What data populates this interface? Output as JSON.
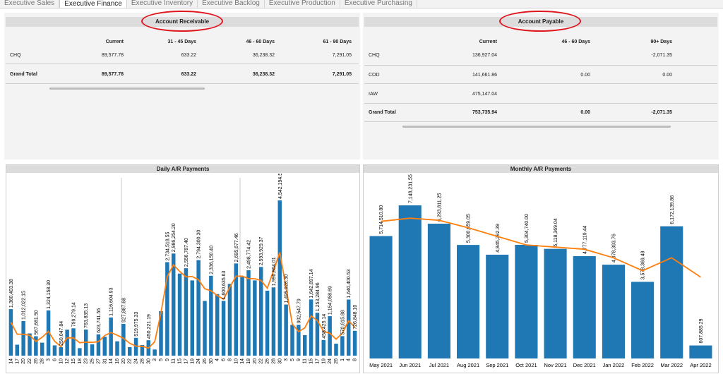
{
  "tabs": [
    {
      "label": "Executive Sales",
      "active": false
    },
    {
      "label": "Executive Finance",
      "active": true
    },
    {
      "label": "Executive Inventory",
      "active": false
    },
    {
      "label": "Executive Backlog",
      "active": false
    },
    {
      "label": "Executive Production",
      "active": false
    },
    {
      "label": "Executive Purchasing",
      "active": false
    }
  ],
  "receivable": {
    "title": "Account Receivable",
    "columns": [
      "Current",
      "31 - 45 Days",
      "46 - 60 Days",
      "61 - 90 Days"
    ],
    "rows": [
      {
        "label": "CHQ",
        "values": [
          "89,577.78",
          "633.22",
          "36,238.32",
          "7,291.05"
        ]
      },
      {
        "label": "Grand Total",
        "values": [
          "89,577.78",
          "633.22",
          "36,238.32",
          "7,291.05"
        ]
      }
    ]
  },
  "payable": {
    "title": "Account Payable",
    "columns": [
      "Current",
      "46 - 60 Days",
      "90+ Days"
    ],
    "rows": [
      {
        "label": "CHQ",
        "values": [
          "136,927.04",
          "",
          "-2,071.35"
        ]
      },
      {
        "label": "COD",
        "values": [
          "141,661.86",
          "0.00",
          "0.00"
        ]
      },
      {
        "label": "IAW",
        "values": [
          "475,147.04",
          "",
          ""
        ]
      },
      {
        "label": "Grand Total",
        "values": [
          "753,735.94",
          "0.00",
          "-2,071.35"
        ]
      }
    ]
  },
  "colors": {
    "bar": "#1f77b4",
    "trend": "#ff7f0e",
    "highlight": "#e0161e"
  },
  "chart_data": [
    {
      "type": "bar",
      "title": "Daily A/R Payments",
      "trend_line": true,
      "x": [
        "14",
        "17",
        "20",
        "22",
        "26",
        "28",
        "3",
        "6",
        "10",
        "12",
        "15",
        "18",
        "23",
        "25",
        "27",
        "31",
        "14",
        "16",
        "20",
        "22",
        "24",
        "28",
        "30",
        "3",
        "5",
        "9",
        "11",
        "15",
        "17",
        "19",
        "24",
        "26",
        "30",
        "4",
        "6",
        "8",
        "10",
        "14",
        "18",
        "20",
        "22",
        "26",
        "28",
        "30",
        "3",
        "5",
        "9",
        "11",
        "15",
        "17",
        "19",
        "24",
        "26",
        "1",
        "4",
        "8"
      ],
      "values": [
        1360403.38,
        320000,
        1012022.15,
        650000,
        567681.5,
        380000,
        1324158.3,
        300000,
        250047.84,
        760000,
        799279.14,
        220000,
        763835.13,
        330000,
        623741.55,
        550000,
        1116604.93,
        420000,
        927887.68,
        250000,
        519975.33,
        310000,
        450221.19,
        180000,
        1300000,
        2734518.55,
        2986254.2,
        2400000,
        2556787.4,
        2200000,
        2794300.3,
        1600000,
        2336150.4,
        1800000,
        1600635.63,
        2100000,
        2695677.46,
        2300000,
        2498774.42,
        2200000,
        2593929.37,
        1900000,
        1996864.01,
        4542194.52,
        1495928.3,
        900000,
        902547.79,
        600000,
        1642897.14,
        1253284.96,
        458425.14,
        1154058.69,
        350000,
        570615.88,
        1640400.53,
        726848.1
      ],
      "annotated": [
        {
          "i": 0,
          "label": "1,360,403.38"
        },
        {
          "i": 2,
          "label": "1,012,022.15"
        },
        {
          "i": 4,
          "label": "567,681.50"
        },
        {
          "i": 6,
          "label": "1,324,158.30"
        },
        {
          "i": 8,
          "label": "250,047.84"
        },
        {
          "i": 10,
          "label": "799,279.14"
        },
        {
          "i": 12,
          "label": "763,835.13"
        },
        {
          "i": 14,
          "label": "623,741.55"
        },
        {
          "i": 16,
          "label": "1,116,604.93"
        },
        {
          "i": 18,
          "label": "927,887.68"
        },
        {
          "i": 20,
          "label": "519,975.33"
        },
        {
          "i": 22,
          "label": "450,221.19"
        },
        {
          "i": 25,
          "label": "2,734,518.55"
        },
        {
          "i": 26,
          "label": "2,986,254.20"
        },
        {
          "i": 28,
          "label": "2,556,787.40"
        },
        {
          "i": 30,
          "label": "2,794,300.30"
        },
        {
          "i": 32,
          "label": "2,336,150.40"
        },
        {
          "i": 34,
          "label": "1,600,635.63"
        },
        {
          "i": 36,
          "label": "2,695,677.46"
        },
        {
          "i": 38,
          "label": "2,498,774.42"
        },
        {
          "i": 40,
          "label": "2,593,929.37"
        },
        {
          "i": 42,
          "label": "1,996,864.01"
        },
        {
          "i": 43,
          "label": "4,542,194.52"
        },
        {
          "i": 44,
          "label": "1,495,928.30"
        },
        {
          "i": 46,
          "label": "902,547.79"
        },
        {
          "i": 48,
          "label": "1,642,897.14"
        },
        {
          "i": 49,
          "label": "1,253,284.96"
        },
        {
          "i": 50,
          "label": "458,425.14"
        },
        {
          "i": 51,
          "label": "1,154,058.69"
        },
        {
          "i": 53,
          "label": "570,615.88"
        },
        {
          "i": 54,
          "label": "1,640,400.53"
        },
        {
          "i": 55,
          "label": "726,848.10"
        }
      ],
      "ylim": [
        0,
        5200000
      ]
    },
    {
      "type": "bar",
      "title": "Monthly A/R Payments",
      "trend_line": true,
      "categories": [
        "May 2021",
        "Jun 2021",
        "Jul 2021",
        "Aug 2021",
        "Sep 2021",
        "Oct 2021",
        "Nov 2021",
        "Dec 2021",
        "Jan 2022",
        "Feb 2022",
        "Mar 2022",
        "Apr 2022"
      ],
      "values": [
        5714510.8,
        7148231.55,
        6293811.25,
        5300659.05,
        4845292.39,
        5304740.0,
        5118369.04,
        4777119.44,
        4378393.76,
        3578369.48,
        6172139.86,
        607885.29
      ],
      "labels": [
        "5,714,510.80",
        "7,148,231.55",
        "6,293,811.25",
        "5,300,659.05",
        "4,845,292.39",
        "5,304,740.00",
        "5,118,369.04",
        "4,777,119.44",
        "4,378,393.76",
        "3,578,369.48",
        "6,172,139.86",
        "607,885.29"
      ],
      "trend": [
        6400000,
        6550000,
        6450000,
        6100000,
        5700000,
        5300000,
        5200000,
        5100000,
        4700000,
        4100000,
        4700000,
        3800000
      ],
      "ylim": [
        0,
        8500000
      ]
    }
  ]
}
